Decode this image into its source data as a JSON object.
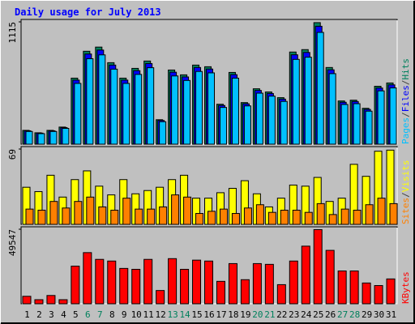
{
  "title": "Daily usage for July 2013",
  "chart_data": [
    {
      "type": "bar",
      "ylim": [
        0,
        1115
      ],
      "yticks": [
        1115
      ],
      "legend_separator": "/",
      "series": [
        {
          "name": "Hits",
          "color": "#00805c",
          "values": [
            126,
            104,
            126,
            156,
            602,
            847,
            885,
            743,
            602,
            691,
            758,
            223,
            676,
            632,
            721,
            706,
            364,
            654,
            379,
            505,
            476,
            424,
            840,
            862,
            1108,
            699,
            394,
            401,
            327,
            528,
            558
          ]
        },
        {
          "name": "Files",
          "color": "#0000ff",
          "values": [
            122,
            101,
            122,
            151,
            584,
            822,
            858,
            721,
            584,
            670,
            735,
            216,
            656,
            613,
            699,
            685,
            353,
            634,
            368,
            490,
            462,
            411,
            815,
            836,
            1075,
            678,
            382,
            389,
            317,
            512,
            541
          ]
        },
        {
          "name": "Pages",
          "color": "#00c0ff",
          "values": [
            116,
            96,
            116,
            144,
            554,
            779,
            814,
            684,
            554,
            636,
            697,
            205,
            622,
            581,
            663,
            650,
            335,
            602,
            349,
            465,
            438,
            390,
            773,
            793,
            1019,
            643,
            362,
            369,
            301,
            486,
            513
          ]
        }
      ]
    },
    {
      "type": "bar",
      "ylim": [
        0,
        69
      ],
      "yticks": [
        69
      ],
      "legend_separator": "/",
      "series": [
        {
          "name": "Visits",
          "color": "#ffff00",
          "values": [
            34,
            30,
            45,
            25,
            41,
            49,
            35,
            27,
            41,
            28,
            31,
            34,
            41,
            45,
            24,
            24,
            29,
            33,
            40,
            28,
            16,
            24,
            36,
            35,
            43,
            21,
            24,
            55,
            44,
            67,
            68
          ]
        },
        {
          "name": "Sites",
          "color": "#ff8000",
          "values": [
            14,
            13,
            21,
            15,
            21,
            25,
            16,
            13,
            24,
            14,
            14,
            16,
            27,
            25,
            10,
            12,
            14,
            10,
            15,
            18,
            11,
            13,
            13,
            11,
            19,
            9,
            14,
            13,
            18,
            24,
            19
          ]
        }
      ]
    },
    {
      "type": "bar",
      "ylim": [
        0,
        49547
      ],
      "yticks": [
        49547
      ],
      "categories": [
        "1",
        "2",
        "3",
        "4",
        "5",
        "6",
        "7",
        "8",
        "9",
        "10",
        "11",
        "12",
        "13",
        "14",
        "15",
        "16",
        "17",
        "18",
        "19",
        "20",
        "21",
        "22",
        "23",
        "24",
        "25",
        "26",
        "27",
        "28",
        "29",
        "30",
        "31"
      ],
      "highlighted": [
        5,
        6,
        12,
        13,
        19,
        20,
        26,
        27
      ],
      "highlight_color": "#00805c",
      "series": [
        {
          "name": "KBytes",
          "color": "#ff0000",
          "values": [
            4955,
            2700,
            5500,
            2700,
            25000,
            34000,
            29500,
            28400,
            23500,
            22900,
            29500,
            8800,
            30000,
            22900,
            29000,
            28400,
            14900,
            26700,
            16000,
            26700,
            26200,
            12700,
            28400,
            38300,
            49300,
            35500,
            21800,
            21800,
            13800,
            12100,
            16500
          ]
        }
      ]
    }
  ]
}
